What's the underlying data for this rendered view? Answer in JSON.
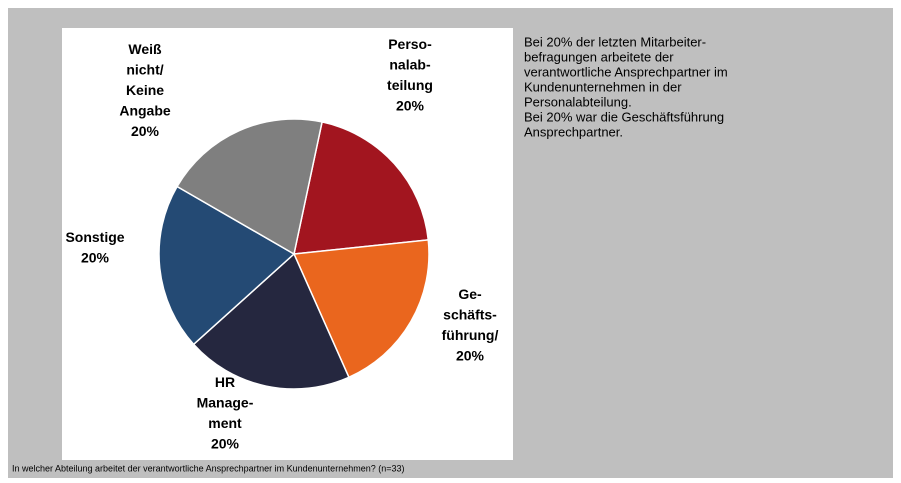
{
  "chart_data": {
    "type": "pie",
    "categories": [
      [
        "Perso-",
        "nalab-",
        "teilung"
      ],
      [
        "Ge-",
        "schäfts-",
        "führung/"
      ],
      [
        "HR",
        "Manage-",
        "ment"
      ],
      [
        "Sonstige"
      ],
      [
        "Weiß",
        "nicht/",
        "Keine",
        "Angabe"
      ]
    ],
    "values": [
      20,
      20,
      20,
      20,
      20
    ],
    "value_labels": [
      "20%",
      "20%",
      "20%",
      "20%",
      "20%"
    ],
    "colors": [
      "#a2151f",
      "#ea661e",
      "#25273f",
      "#244a74",
      "#7f7f7f"
    ],
    "description": [
      "Bei 20% der letzten Mitarbeiter-",
      "befragungen arbeitete der",
      "verantwortliche Ansprechpartner im",
      "Kundenunternehmen in der",
      "Personalabteilung.",
      "Bei 20% war die Geschäftsführung",
      "Ansprechpartner."
    ],
    "footnote": "In welcher Abteilung arbeitet der verantwortliche Ansprechpartner im Kundenunternehmen? (n=33)"
  }
}
